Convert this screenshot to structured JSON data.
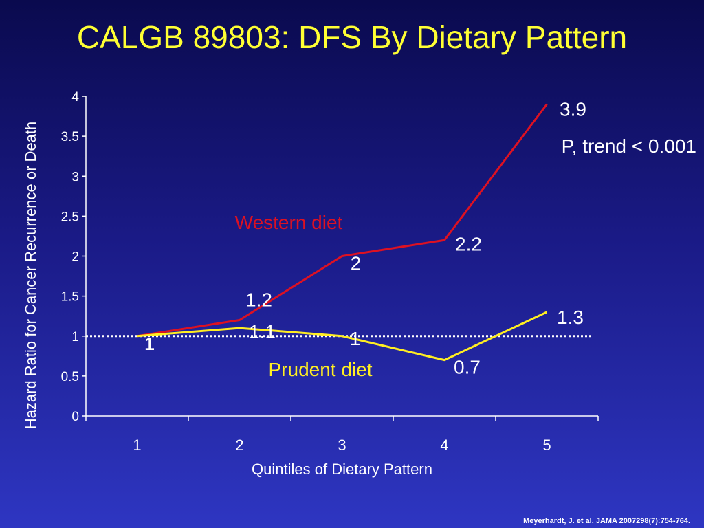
{
  "slide": {
    "title": "CALGB 89803: DFS By Dietary Pattern",
    "citation": "Meyerhardt, J. et al. JAMA 2007298(7):754-764."
  },
  "chart_data": {
    "type": "line",
    "xlabel": "Quintiles of Dietary Pattern",
    "ylabel": "Hazard Ratio for Cancer Recurrence or Death",
    "categories": [
      "1",
      "2",
      "3",
      "4",
      "5"
    ],
    "ylim": [
      0,
      4
    ],
    "yticks": [
      "0",
      "0.5",
      "1",
      "1.5",
      "2",
      "2.5",
      "3",
      "3.5",
      "4"
    ],
    "grid": false,
    "reference_line": {
      "value": 1,
      "style": "dotted",
      "color": "#ffffff"
    },
    "series": [
      {
        "name": "Western diet",
        "color": "#dd1122",
        "values": [
          1,
          1.2,
          2,
          2.2,
          3.9
        ],
        "data_labels": [
          "1",
          "1.2",
          "2",
          "2.2",
          "3.9"
        ]
      },
      {
        "name": "Prudent diet",
        "color": "#ffee22",
        "values": [
          1,
          1.1,
          1,
          0.7,
          1.3
        ],
        "data_labels": [
          "",
          "1.1",
          "1",
          "0.7",
          "1.3"
        ]
      }
    ],
    "annotations": [
      "P, trend < 0.001"
    ]
  }
}
